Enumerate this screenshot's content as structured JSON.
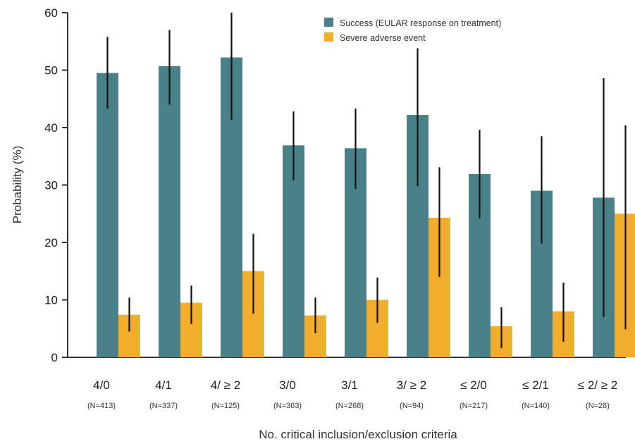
{
  "chart_data": {
    "type": "bar",
    "title": "",
    "xlabel": "No. critical inclusion/exclusion criteria",
    "ylabel": "Probability (%)",
    "ylim": [
      0,
      60
    ],
    "yticks": [
      "0",
      "10",
      "20",
      "30",
      "40",
      "50",
      "60"
    ],
    "grid": false,
    "legend": "top-right",
    "categories": [
      "4/0",
      "4/1",
      "4/ ≥ 2",
      "3/0",
      "3/1",
      "3/ ≥ 2",
      "≤ 2/0",
      "≤ 2/1",
      "≤ 2/ ≥ 2"
    ],
    "sample_sizes": [
      "(N=413)",
      "(N=337)",
      "(N=125)",
      "(N=363)",
      "(N=268)",
      "(N=94)",
      "(N=217)",
      "(N=140)",
      "(N=28)"
    ],
    "series": [
      {
        "name": "Success (EULAR response on treatment)",
        "color": "#4a8088",
        "values": [
          49.5,
          50.7,
          52.2,
          36.9,
          36.4,
          42.2,
          31.9,
          29.0,
          27.8
        ],
        "ci_low": [
          43.3,
          44.0,
          41.3,
          30.8,
          29.3,
          29.8,
          24.2,
          19.8,
          7.0
        ],
        "ci_high": [
          55.8,
          57.0,
          60.0,
          42.8,
          43.3,
          53.8,
          39.6,
          38.5,
          48.6
        ]
      },
      {
        "name": "Severe adverse event",
        "color": "#f2ad2c",
        "values": [
          7.4,
          9.5,
          15.0,
          7.3,
          10.0,
          24.3,
          5.4,
          8.0,
          25.0
        ],
        "ci_low": [
          4.5,
          5.8,
          7.6,
          4.2,
          6.0,
          14.0,
          1.6,
          2.7,
          4.9
        ],
        "ci_high": [
          10.4,
          12.5,
          21.5,
          10.4,
          13.9,
          33.1,
          8.7,
          13.0,
          40.4
        ]
      }
    ]
  }
}
